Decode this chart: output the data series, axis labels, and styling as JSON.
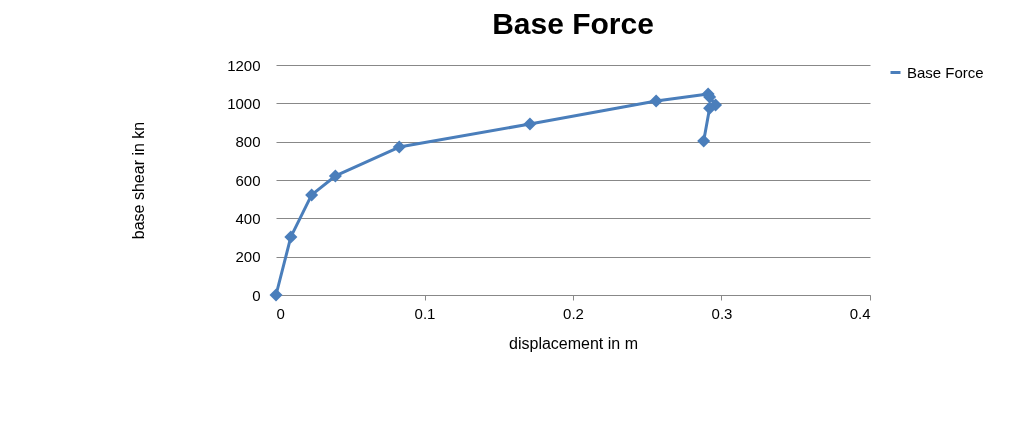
{
  "chart_data": {
    "type": "line",
    "title": "Base Force",
    "xlabel": "displacement in m",
    "ylabel": "base shear in kn",
    "x": [
      0,
      0.01,
      0.024,
      0.04,
      0.083,
      0.171,
      0.256,
      0.291,
      0.292,
      0.296,
      0.292,
      0.288
    ],
    "series": [
      {
        "name": "Base Force",
        "color": "#4a7ebb",
        "values": [
          0,
          303,
          522,
          621,
          772,
          892,
          1012,
          1049,
          1033,
          991,
          975,
          803
        ]
      }
    ],
    "xlim": [
      0,
      0.4
    ],
    "xticks": [
      0,
      0.1,
      0.2,
      0.3,
      0.4
    ],
    "ylim": [
      0,
      1200
    ],
    "yticks": [
      0,
      200,
      400,
      600,
      800,
      1000,
      1200
    ],
    "grid": "y",
    "legend": "right",
    "marker": "diamond",
    "line_style": "solid"
  }
}
